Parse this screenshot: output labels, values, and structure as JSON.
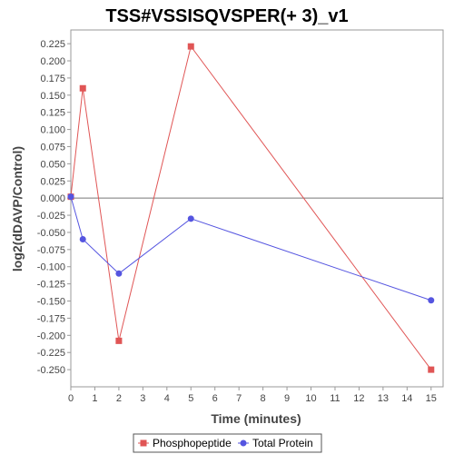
{
  "chart_data": {
    "type": "line",
    "title": "TSS#VSSISQVSPER(+ 3)_v1",
    "xlabel": "Time (minutes)",
    "ylabel": "log2(dDAVP/Control)",
    "xlim": [
      0,
      15.5
    ],
    "ylim": [
      -0.275,
      0.245
    ],
    "xticks": [
      0,
      1,
      2,
      3,
      4,
      5,
      6,
      7,
      8,
      9,
      10,
      11,
      12,
      13,
      14,
      15
    ],
    "yticks": [
      -0.25,
      -0.225,
      -0.2,
      -0.175,
      -0.15,
      -0.125,
      -0.1,
      -0.075,
      -0.05,
      -0.025,
      0.0,
      0.025,
      0.05,
      0.075,
      0.1,
      0.125,
      0.15,
      0.175,
      0.2,
      0.225
    ],
    "ytick_labels": [
      "-0.250",
      "-0.225",
      "-0.200",
      "-0.175",
      "-0.150",
      "-0.125",
      "-0.100",
      "-0.075",
      "-0.050",
      "-0.025",
      "0.000",
      "0.025",
      "0.050",
      "0.075",
      "0.100",
      "0.125",
      "0.150",
      "0.175",
      "0.200",
      "0.225"
    ],
    "zero_line": true,
    "grid": false,
    "legend_position": "bottom",
    "series": [
      {
        "name": "Phosphopeptide",
        "color": "#e05555",
        "marker": "square",
        "x": [
          0,
          0.5,
          2,
          5,
          15
        ],
        "y": [
          0.002,
          0.16,
          -0.208,
          0.221,
          -0.25
        ]
      },
      {
        "name": "Total Protein",
        "color": "#5555e0",
        "marker": "circle",
        "x": [
          0,
          0.5,
          2,
          5,
          15
        ],
        "y": [
          0.002,
          -0.06,
          -0.11,
          -0.03,
          -0.149
        ]
      }
    ]
  }
}
